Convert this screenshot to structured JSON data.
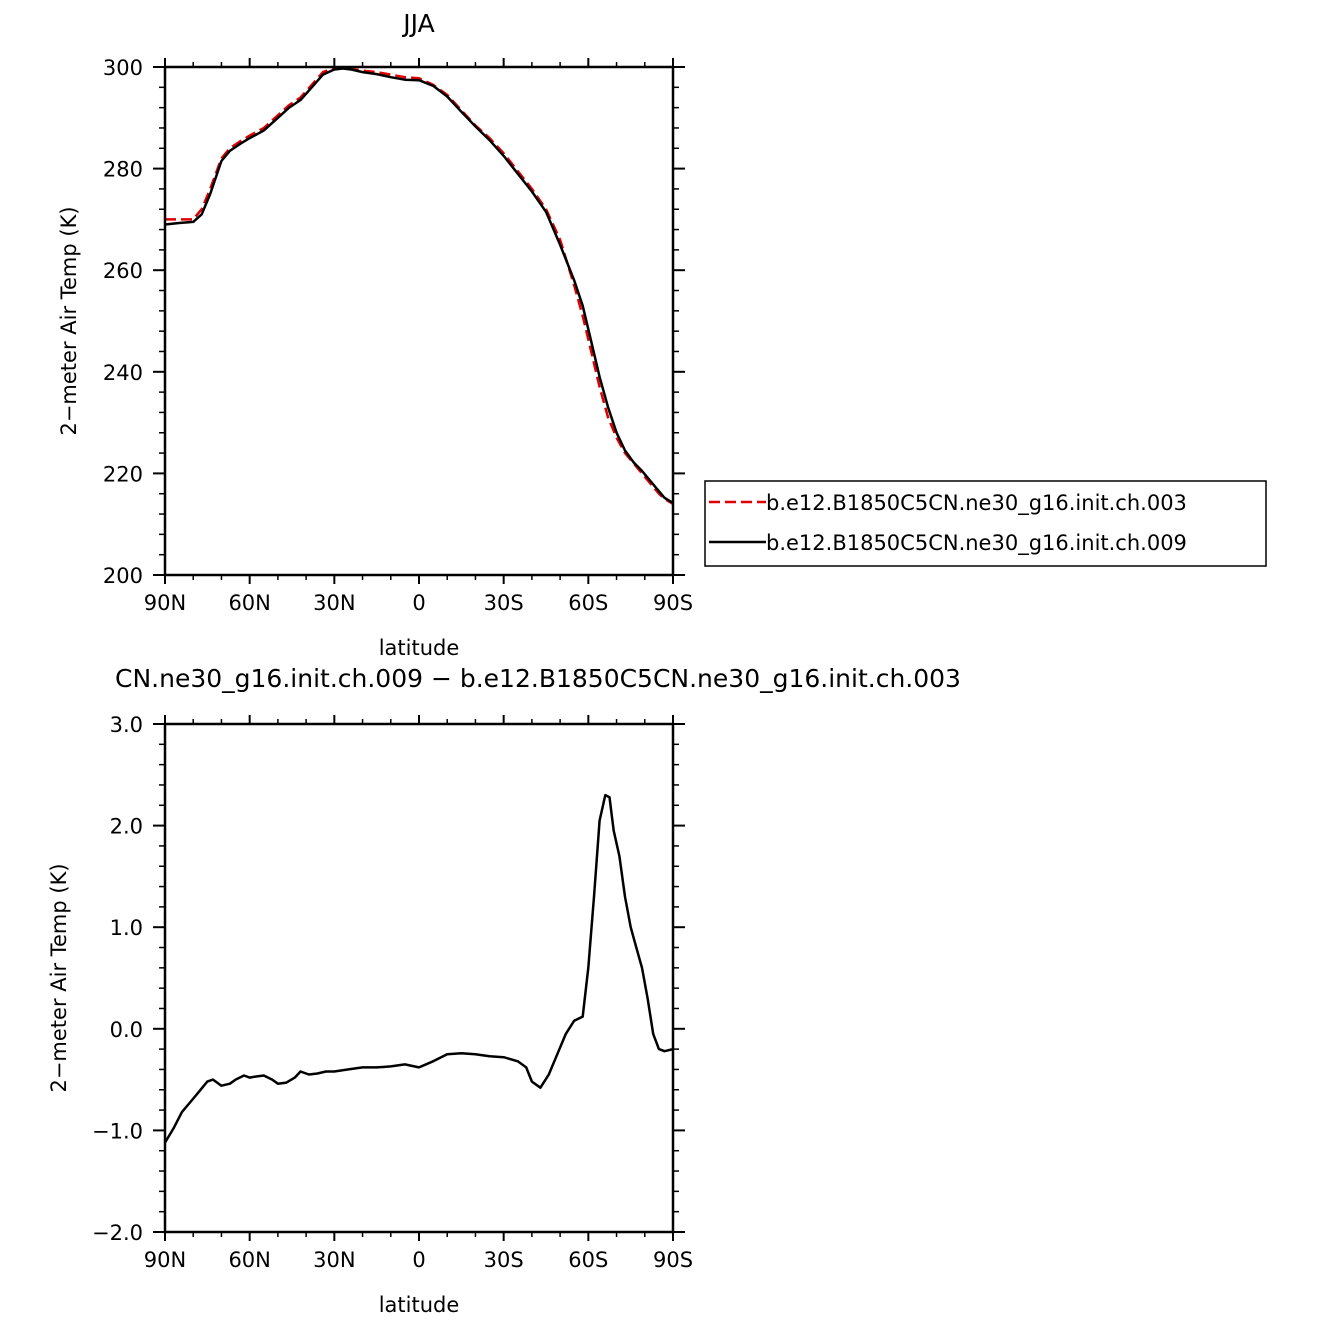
{
  "chart_data": [
    {
      "type": "line",
      "title": "JJA",
      "xlabel": "latitude",
      "ylabel": "2−meter Air Temp (K)",
      "xlim": [
        90,
        -90
      ],
      "ylim": [
        200,
        300
      ],
      "x_ticks": [
        90,
        60,
        30,
        0,
        -30,
        -60,
        -90
      ],
      "x_tick_labels": [
        "90N",
        "60N",
        "30N",
        "0",
        "30S",
        "60S",
        "90S"
      ],
      "y_ticks": [
        200,
        220,
        240,
        260,
        280,
        300
      ],
      "y_tick_labels": [
        "200",
        "220",
        "240",
        "260",
        "280",
        "300"
      ],
      "grid": false,
      "legend_position": "right",
      "series": [
        {
          "name": "b.e12.B1850C5CN.ne30_g16.init.ch.003",
          "color": "#e00000",
          "dash": "dashed",
          "x": [
            90,
            85,
            80,
            77,
            74,
            70,
            67,
            63,
            60,
            55,
            50,
            46,
            42,
            38,
            34,
            30,
            27,
            24,
            20,
            15,
            10,
            5,
            0,
            -5,
            -10,
            -15,
            -20,
            -25,
            -30,
            -35,
            -40,
            -45,
            -50,
            -55,
            -58,
            -61,
            -64,
            -67,
            -70,
            -73,
            -76,
            -79,
            -82,
            -85,
            -87,
            -90
          ],
          "y": [
            270,
            270,
            270,
            272,
            276,
            282,
            284,
            285.5,
            286.5,
            288,
            290.5,
            292.5,
            294,
            296.5,
            299,
            299.8,
            299.8,
            299.6,
            299.3,
            299,
            298.5,
            298,
            297.8,
            296.5,
            294.5,
            291.5,
            288.5,
            286,
            283,
            279.5,
            276,
            272,
            266,
            257,
            251,
            244,
            237,
            231,
            227,
            224,
            222,
            220,
            218,
            216,
            215,
            214
          ]
        },
        {
          "name": "b.e12.B1850C5CN.ne30_g16.init.ch.009",
          "color": "#000000",
          "dash": "solid",
          "x": [
            90,
            85,
            80,
            77,
            74,
            70,
            67,
            63,
            60,
            55,
            50,
            46,
            42,
            38,
            34,
            30,
            27,
            24,
            20,
            15,
            10,
            5,
            0,
            -5,
            -10,
            -15,
            -20,
            -25,
            -30,
            -35,
            -40,
            -45,
            -50,
            -55,
            -58,
            -61,
            -64,
            -67,
            -70,
            -73,
            -76,
            -79,
            -82,
            -85,
            -87,
            -90
          ],
          "y": [
            269,
            269.3,
            269.5,
            271,
            275,
            281.5,
            283.5,
            285,
            286,
            287.5,
            290,
            292,
            293.5,
            296,
            298.5,
            299.5,
            299.7,
            299.5,
            299,
            298.6,
            298,
            297.5,
            297.4,
            296.3,
            294.2,
            291.2,
            288.3,
            285.6,
            282.5,
            279,
            275.5,
            271.5,
            265,
            258,
            253,
            246,
            239,
            233,
            228,
            224.5,
            222.2,
            220.5,
            218.5,
            216.5,
            215.2,
            214.2
          ]
        }
      ]
    },
    {
      "type": "line",
      "title": "CN.ne30_g16.init.ch.009 − b.e12.B1850C5CN.ne30_g16.init.ch.003",
      "xlabel": "latitude",
      "ylabel": "2−meter Air Temp (K)",
      "xlim": [
        90,
        -90
      ],
      "ylim": [
        -2.0,
        3.0
      ],
      "x_ticks": [
        90,
        60,
        30,
        0,
        -30,
        -60,
        -90
      ],
      "x_tick_labels": [
        "90N",
        "60N",
        "30N",
        "0",
        "30S",
        "60S",
        "90S"
      ],
      "y_ticks": [
        -2.0,
        -1.0,
        0.0,
        1.0,
        2.0,
        3.0
      ],
      "y_tick_labels": [
        "−2.0",
        "−1.0",
        "0.0",
        "1.0",
        "2.0",
        "3.0"
      ],
      "grid": false,
      "series": [
        {
          "color": "#000000",
          "dash": "solid",
          "x": [
            90,
            87,
            84,
            81,
            78,
            75,
            73,
            70,
            67,
            65,
            62,
            60,
            58,
            55,
            52,
            50,
            47,
            44,
            42,
            39,
            36,
            33,
            30,
            25,
            20,
            15,
            10,
            5,
            0,
            -5,
            -10,
            -15,
            -20,
            -25,
            -30,
            -35,
            -38,
            -40,
            -43,
            -46,
            -49,
            -52,
            -55,
            -58,
            -60,
            -62,
            -64,
            -66,
            -67.5,
            -69,
            -71,
            -73,
            -75,
            -77,
            -79,
            -81,
            -83,
            -85,
            -87,
            -90
          ],
          "y": [
            -1.12,
            -0.98,
            -0.82,
            -0.72,
            -0.62,
            -0.52,
            -0.5,
            -0.56,
            -0.54,
            -0.5,
            -0.46,
            -0.48,
            -0.47,
            -0.46,
            -0.5,
            -0.54,
            -0.53,
            -0.48,
            -0.42,
            -0.45,
            -0.44,
            -0.42,
            -0.42,
            -0.4,
            -0.38,
            -0.38,
            -0.37,
            -0.35,
            -0.38,
            -0.32,
            -0.25,
            -0.24,
            -0.25,
            -0.27,
            -0.28,
            -0.32,
            -0.38,
            -0.52,
            -0.58,
            -0.45,
            -0.25,
            -0.05,
            0.08,
            0.12,
            0.6,
            1.3,
            2.05,
            2.3,
            2.28,
            1.95,
            1.7,
            1.3,
            1.0,
            0.8,
            0.6,
            0.3,
            -0.05,
            -0.2,
            -0.22,
            -0.2
          ]
        }
      ]
    }
  ]
}
